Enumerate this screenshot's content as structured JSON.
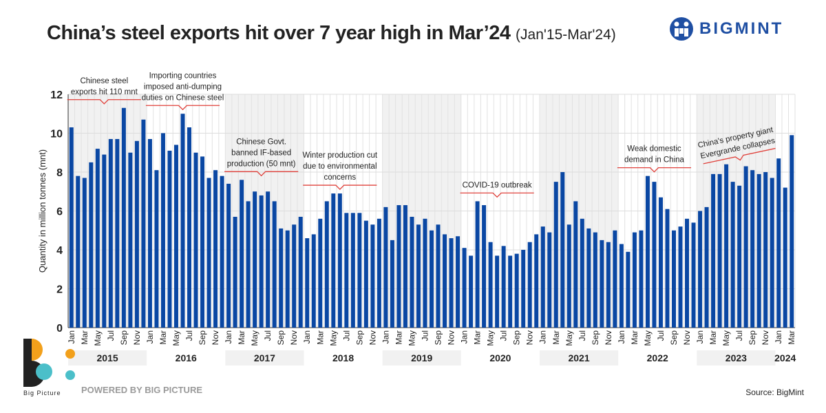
{
  "header": {
    "title": "China’s steel exports hit over 7 year high in Mar’24",
    "subtitle": "(Jan'15-Mar'24)"
  },
  "brand": {
    "name": "BIGMINT",
    "big_picture": "Big Picture",
    "powered_by": "POWERED BY BIG PICTURE",
    "source": "Source: BigMint"
  },
  "colors": {
    "bar": "#0a47a3",
    "annotation": "#e0403a",
    "shade": "#f1f1f1",
    "brand": "#1f4fa3"
  },
  "chart_data": {
    "type": "bar",
    "title": "China’s steel exports hit over 7 year high in Mar’24",
    "ylabel": "Quantity in million tonnes (mnt)",
    "ylim": [
      0,
      12
    ],
    "yticks": [
      0,
      2,
      4,
      6,
      8,
      10,
      12
    ],
    "grid": true,
    "month_labels": [
      "Jan",
      "",
      "Mar",
      "",
      "May",
      "",
      "Jul",
      "",
      "Sep",
      "",
      "Nov",
      ""
    ],
    "years": [
      "2015",
      "2016",
      "2017",
      "2018",
      "2019",
      "2020",
      "2021",
      "2022",
      "2023",
      "2024"
    ],
    "values": [
      10.3,
      7.8,
      7.7,
      8.5,
      9.2,
      8.9,
      9.7,
      9.7,
      11.3,
      9.0,
      9.6,
      10.7,
      9.7,
      8.1,
      10.0,
      9.1,
      9.4,
      11.0,
      10.3,
      9.0,
      8.8,
      7.7,
      8.1,
      7.8,
      7.4,
      5.7,
      7.6,
      6.5,
      7.0,
      6.8,
      7.0,
      6.5,
      5.1,
      5.0,
      5.3,
      5.7,
      4.6,
      4.8,
      5.6,
      6.5,
      6.9,
      6.9,
      5.9,
      5.9,
      5.9,
      5.5,
      5.3,
      5.6,
      6.2,
      4.5,
      6.3,
      6.3,
      5.7,
      5.3,
      5.6,
      5.0,
      5.3,
      4.8,
      4.6,
      4.7,
      4.1,
      3.7,
      6.5,
      6.3,
      4.4,
      3.7,
      4.2,
      3.7,
      3.8,
      4.0,
      4.4,
      4.8,
      5.2,
      4.9,
      7.5,
      8.0,
      5.3,
      6.5,
      5.6,
      5.1,
      4.9,
      4.5,
      4.4,
      5.0,
      4.3,
      3.9,
      4.9,
      5.0,
      7.8,
      7.5,
      6.7,
      6.1,
      5.0,
      5.2,
      5.6,
      5.4,
      6.0,
      6.2,
      7.9,
      7.9,
      8.4,
      7.5,
      7.3,
      8.3,
      8.1,
      7.9,
      8.0,
      7.7,
      8.7,
      7.2,
      9.9
    ],
    "annotations": [
      {
        "lines": [
          "Chinese steel",
          "exports hit 110 mnt"
        ],
        "from": 0,
        "to": 10,
        "at": 5
      },
      {
        "lines": [
          "Importing countries",
          "imposed anti-dumping",
          "duties on Chinese steel"
        ],
        "from": 12,
        "to": 22,
        "at": 17
      },
      {
        "lines": [
          "Chinese Govt.",
          "banned IF-based",
          "production (50 mnt)"
        ],
        "from": 24,
        "to": 34,
        "at": 29
      },
      {
        "lines": [
          "Winter production cut",
          "due to environmental",
          "concerns"
        ],
        "from": 36,
        "to": 46,
        "at": 41
      },
      {
        "lines": [
          "COVID-19 outbreak"
        ],
        "from": 60,
        "to": 70,
        "at": 65
      },
      {
        "lines": [
          "Weak domestic",
          "demand in China"
        ],
        "from": 84,
        "to": 94,
        "at": 89
      },
      {
        "lines": [
          "China's property giant",
          "Evergrande collapses"
        ],
        "from": 97,
        "to": 107,
        "at": 102,
        "rotated": true
      }
    ]
  }
}
